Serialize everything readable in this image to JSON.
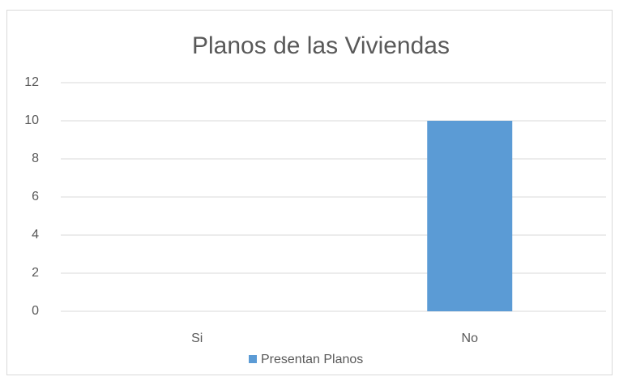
{
  "chart_data": {
    "type": "bar",
    "title": "Planos de las Viviendas",
    "categories": [
      "Si",
      "No"
    ],
    "series": [
      {
        "name": "Presentan Planos",
        "color": "#5b9bd5",
        "values": [
          0,
          10
        ]
      }
    ],
    "ylim": [
      0,
      12
    ],
    "yticks": [
      0,
      2,
      4,
      6,
      8,
      10,
      12
    ],
    "grid": true,
    "legend": "bottom"
  }
}
